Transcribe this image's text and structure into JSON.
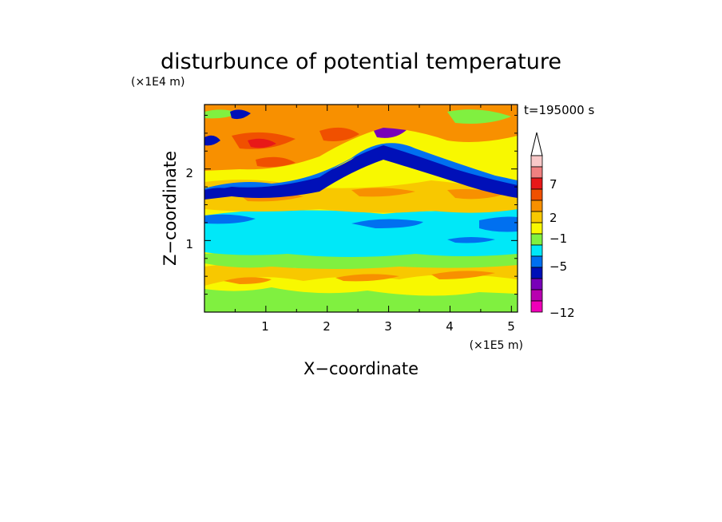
{
  "chart_data": {
    "type": "heatmap",
    "title": "disturbunce of potential temperature",
    "xlabel": "X−coordinate",
    "ylabel": "Z−coordinate",
    "x_unit": "(×1E5 m)",
    "y_unit": "(×1E4 m)",
    "time_label": "t=195000 s",
    "x_ticks": [
      "1",
      "2",
      "3",
      "4",
      "5"
    ],
    "y_ticks": [
      "1",
      "2"
    ],
    "xlim": [
      0,
      5.1
    ],
    "ylim": [
      0,
      2.9
    ],
    "colorbar": {
      "tick_labels": [
        "7",
        "2",
        "−1",
        "−5",
        "−12"
      ],
      "extend": "max",
      "levels_top_to_bottom": [
        {
          "color": "#f8c8c8"
        },
        {
          "color": "#f08080"
        },
        {
          "color": "#e81818"
        },
        {
          "color": "#f05000"
        },
        {
          "color": "#f89000"
        },
        {
          "color": "#f8c800"
        },
        {
          "color": "#f8f800"
        },
        {
          "color": "#80f040"
        },
        {
          "color": "#00e8f8"
        },
        {
          "color": "#0070f0"
        },
        {
          "color": "#0010b8"
        },
        {
          "color": "#7800b8"
        },
        {
          "color": "#b800b0"
        },
        {
          "color": "#f000b8"
        }
      ]
    },
    "layers_bottom_to_top": [
      {
        "z_range": [
          0.0,
          0.25
        ],
        "field": "warm-to-neutral, green/yellow/orange"
      },
      {
        "z_range": [
          0.25,
          0.7
        ],
        "field": "warm anomalies +1 to +3, yellow/orange"
      },
      {
        "z_range": [
          0.7,
          0.95
        ],
        "field": "near zero, green"
      },
      {
        "z_range": [
          0.95,
          1.35
        ],
        "field": "cool anomaly about -1, cyan with blue patches"
      },
      {
        "z_range": [
          1.35,
          1.8
        ],
        "field": "warm, yellow/orange"
      },
      {
        "z_range": [
          1.8,
          2.5
        ],
        "field": "cold band -3 to -8 rising to about 2.5 near x=3, blue/purple"
      },
      {
        "z_range": [
          2.1,
          2.9
        ],
        "field": "warm anomalies up to about +7, orange/red"
      }
    ]
  }
}
